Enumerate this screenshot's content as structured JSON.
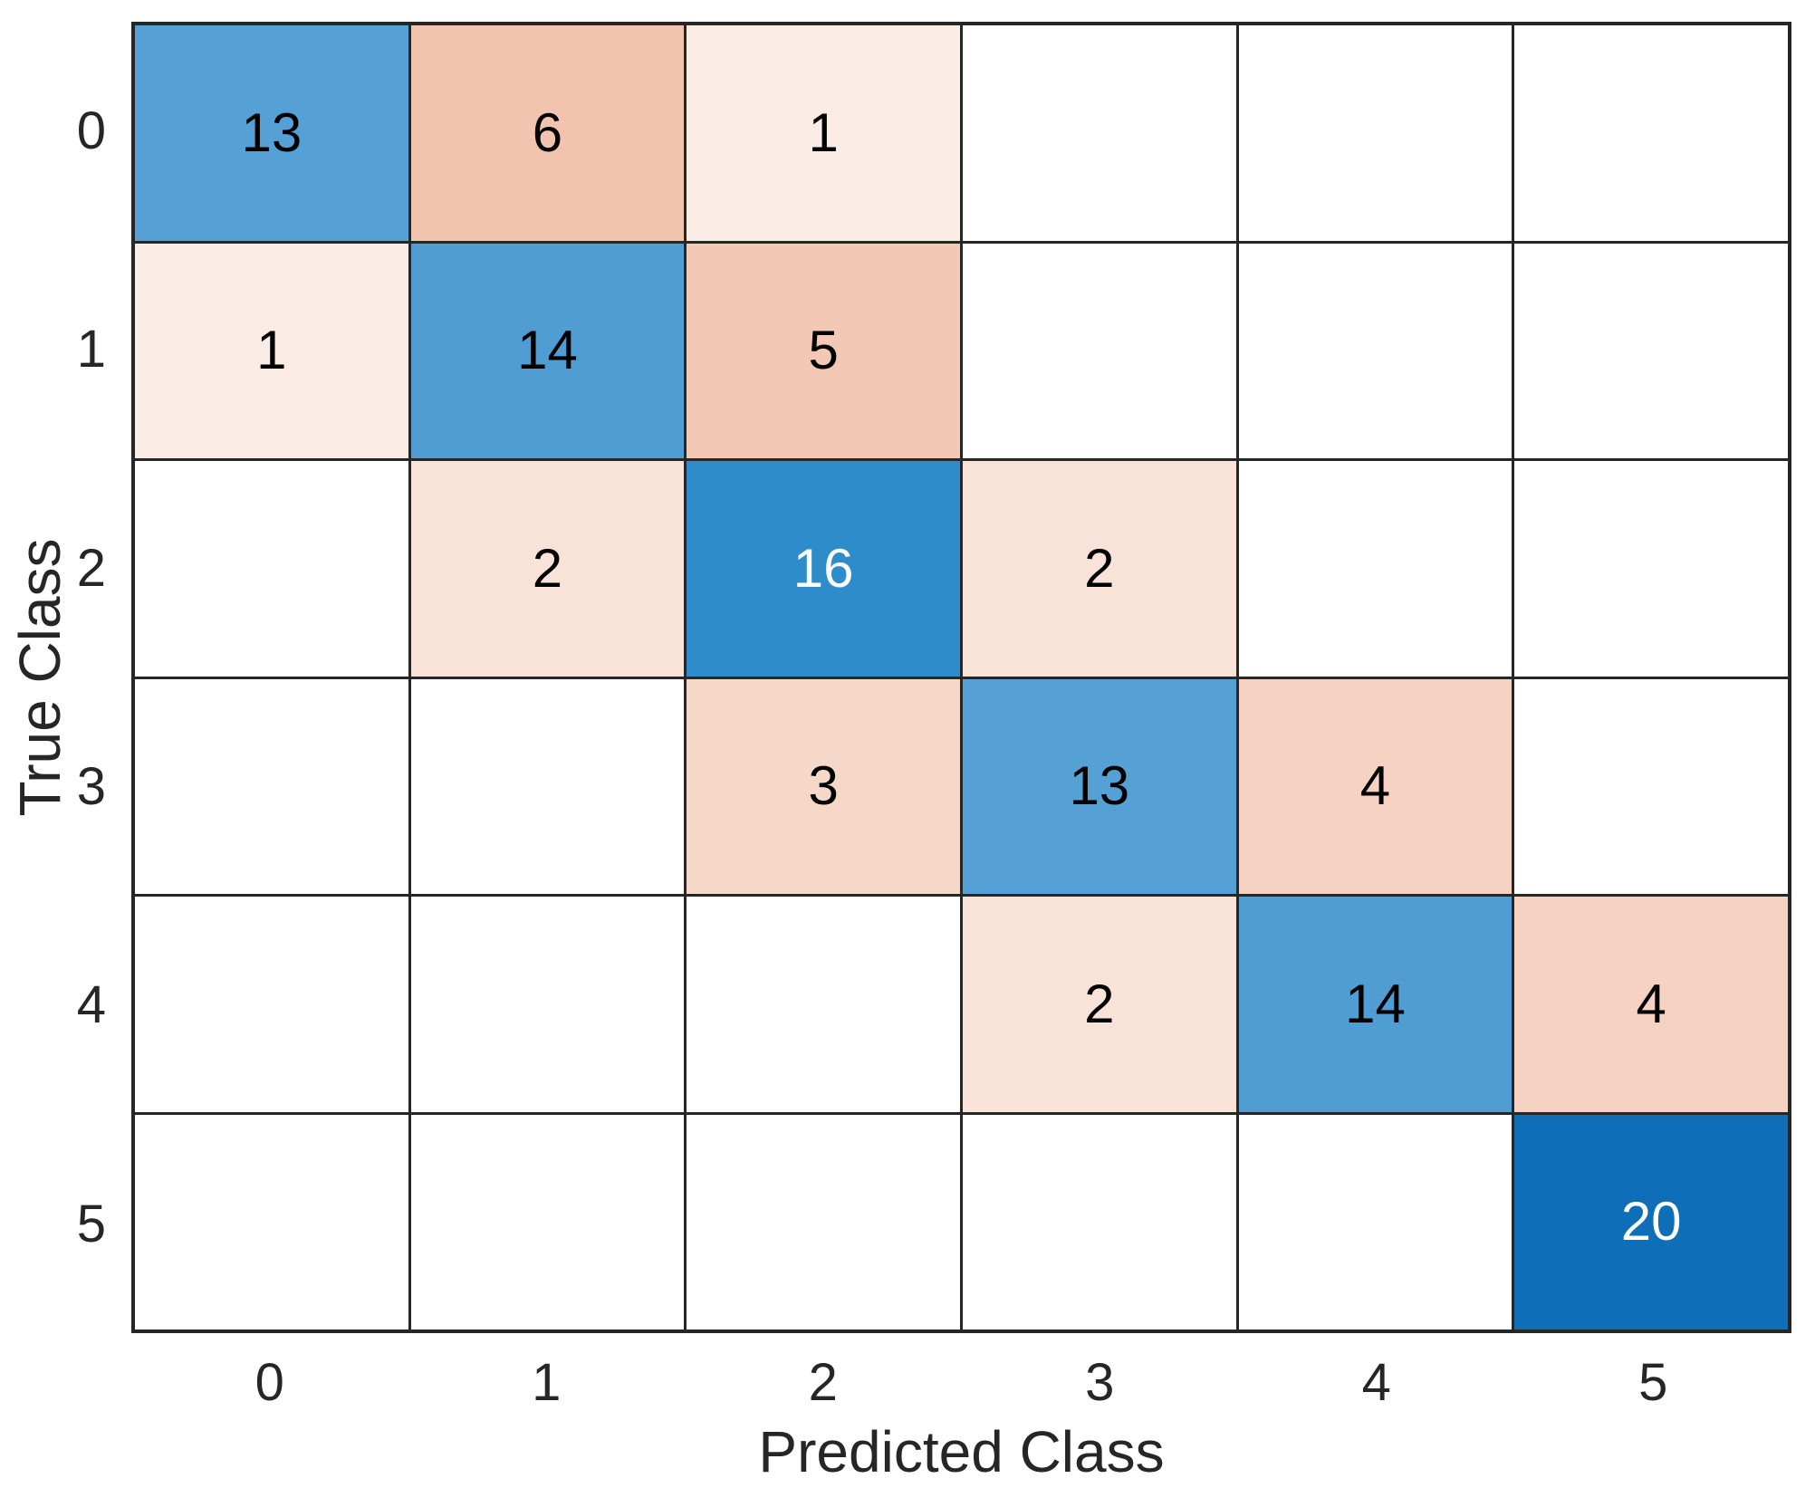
{
  "chart_data": {
    "type": "heatmap",
    "subtype": "confusion-matrix",
    "title": "",
    "xlabel": "Predicted Class",
    "ylabel": "True Class",
    "x_categories": [
      "0",
      "1",
      "2",
      "3",
      "4",
      "5"
    ],
    "y_categories": [
      "0",
      "1",
      "2",
      "3",
      "4",
      "5"
    ],
    "matrix": [
      [
        13,
        6,
        1,
        null,
        null,
        null
      ],
      [
        1,
        14,
        5,
        null,
        null,
        null
      ],
      [
        null,
        2,
        16,
        2,
        null,
        null
      ],
      [
        null,
        null,
        3,
        13,
        4,
        null
      ],
      [
        null,
        null,
        null,
        2,
        14,
        4
      ],
      [
        null,
        null,
        null,
        null,
        null,
        20
      ]
    ],
    "layout": {
      "grid": "on",
      "legend": "none",
      "axes_ticks_outside": false
    },
    "colors": {
      "empty_cell": "#ffffff",
      "grid_line": "#262626",
      "axis_text": "#262626",
      "cell_text_dark": "#000000",
      "cell_text_light": "#ffffff",
      "diagonal_by_value": {
        "13": "#55a0d5",
        "14": "#4f9dd2",
        "16": "#2f8ccb",
        "20": "#0e6fb8"
      },
      "offdiagonal_by_value": {
        "1": "#fbece6",
        "2": "#f9e3d9",
        "3": "#f6d8c9",
        "4": "#f5d2c1",
        "5": "#f3c9b5",
        "6": "#f2c3ae"
      },
      "white_text_min_value": 16
    }
  }
}
